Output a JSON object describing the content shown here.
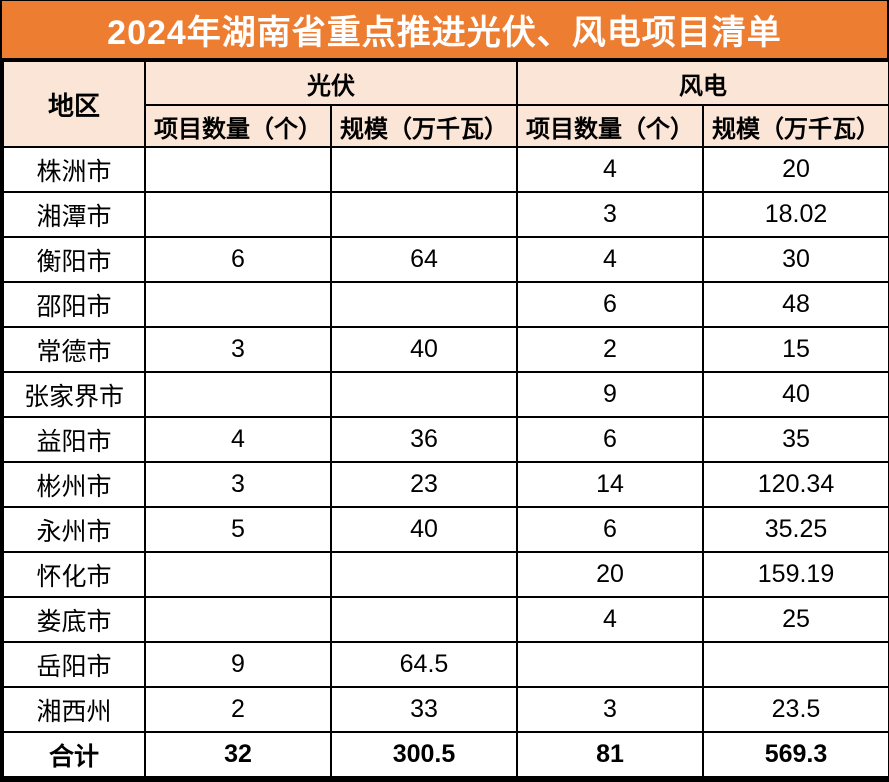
{
  "title": "2024年湖南省重点推进光伏、风电项目清单",
  "colors": {
    "title_bg": "#ED7D31",
    "title_text": "#FFFFFF",
    "header_bg": "#FBE5D6",
    "border": "#000000",
    "row_bg": "#FFFFFF",
    "body_text": "#000000"
  },
  "table": {
    "region_header": "地区",
    "pv_group": "光伏",
    "wind_group": "风电",
    "count_label": "项目数量（个）",
    "scale_label": "规模（万千瓦）"
  },
  "chart_data": {
    "type": "table",
    "title": "2024年湖南省重点推进光伏、风电项目清单",
    "column_groups": [
      "地区",
      "光伏",
      "风电"
    ],
    "columns": [
      "地区",
      "光伏·项目数量（个）",
      "光伏·规模（万千瓦）",
      "风电·项目数量（个）",
      "风电·规模（万千瓦）"
    ],
    "rows": [
      [
        "株洲市",
        "",
        "",
        "4",
        "20"
      ],
      [
        "湘潭市",
        "",
        "",
        "3",
        "18.02"
      ],
      [
        "衡阳市",
        "6",
        "64",
        "4",
        "30"
      ],
      [
        "邵阳市",
        "",
        "",
        "6",
        "48"
      ],
      [
        "常德市",
        "3",
        "40",
        "2",
        "15"
      ],
      [
        "张家界市",
        "",
        "",
        "9",
        "40"
      ],
      [
        "益阳市",
        "4",
        "36",
        "6",
        "35"
      ],
      [
        "彬州市",
        "3",
        "23",
        "14",
        "120.34"
      ],
      [
        "永州市",
        "5",
        "40",
        "6",
        "35.25"
      ],
      [
        "怀化市",
        "",
        "",
        "20",
        "159.19"
      ],
      [
        "娄底市",
        "",
        "",
        "4",
        "25"
      ],
      [
        "岳阳市",
        "9",
        "64.5",
        "",
        ""
      ],
      [
        "湘西州",
        "2",
        "33",
        "3",
        "23.5"
      ],
      [
        "合计",
        "32",
        "300.5",
        "81",
        "569.3"
      ]
    ],
    "total_row_index": 13,
    "legend_position": "none",
    "grid": true
  }
}
